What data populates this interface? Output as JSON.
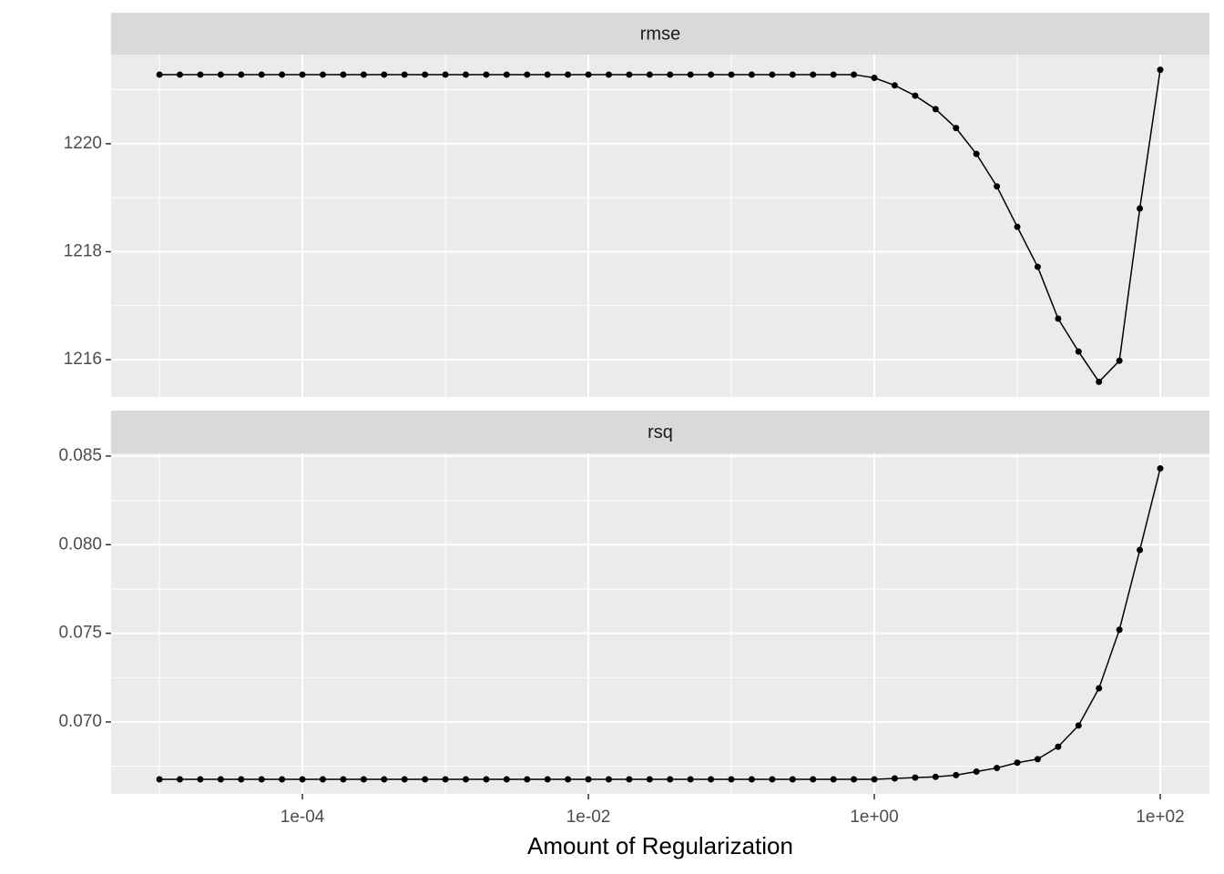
{
  "x_axis": {
    "label": "Amount of Regularization",
    "scale": "log",
    "lim": [
      4.59e-06,
      220.8
    ],
    "ticks": [
      {
        "value": 0.0001,
        "label": "1e-04"
      },
      {
        "value": 0.01,
        "label": "1e-02"
      },
      {
        "value": 1,
        "label": "1e+00"
      },
      {
        "value": 100,
        "label": "1e+02"
      }
    ],
    "minor_ticks": [
      1e-05,
      0.001,
      0.1,
      10
    ]
  },
  "chart_data": [
    {
      "type": "line",
      "title": "rmse",
      "color": "#000000",
      "grid": true,
      "x": [
        1e-05,
        1.389e-05,
        1.931e-05,
        2.683e-05,
        3.728e-05,
        5.179e-05,
        7.197e-05,
        0.0001,
        0.0001389,
        0.0001931,
        0.0002683,
        0.0003728,
        0.0005179,
        0.0007197,
        0.001,
        0.001389,
        0.001931,
        0.002683,
        0.003728,
        0.005179,
        0.007197,
        0.01,
        0.01389,
        0.01931,
        0.02683,
        0.03728,
        0.05179,
        0.07197,
        0.1,
        0.1389,
        0.1931,
        0.2683,
        0.3728,
        0.5179,
        0.7197,
        1,
        1.389,
        1.931,
        2.683,
        3.728,
        5.179,
        7.197,
        10,
        13.89,
        19.31,
        26.83,
        37.28,
        51.79,
        71.97,
        100
      ],
      "values": [
        1221.28,
        1221.28,
        1221.28,
        1221.28,
        1221.28,
        1221.28,
        1221.28,
        1221.28,
        1221.28,
        1221.28,
        1221.28,
        1221.28,
        1221.28,
        1221.28,
        1221.28,
        1221.28,
        1221.28,
        1221.28,
        1221.28,
        1221.28,
        1221.28,
        1221.28,
        1221.28,
        1221.28,
        1221.28,
        1221.28,
        1221.28,
        1221.28,
        1221.28,
        1221.28,
        1221.28,
        1221.28,
        1221.28,
        1221.28,
        1221.28,
        1221.22,
        1221.08,
        1220.89,
        1220.64,
        1220.29,
        1219.81,
        1219.21,
        1218.46,
        1217.72,
        1216.76,
        1216.15,
        1215.59,
        1215.98,
        1218.8,
        1221.37
      ],
      "ylim": [
        1215.31,
        1221.65
      ],
      "yticks": [
        1216,
        1218,
        1220
      ],
      "y_minor_ticks": [
        1217,
        1219,
        1221
      ]
    },
    {
      "type": "line",
      "title": "rsq",
      "color": "#000000",
      "grid": true,
      "x": [
        1e-05,
        1.389e-05,
        1.931e-05,
        2.683e-05,
        3.728e-05,
        5.179e-05,
        7.197e-05,
        0.0001,
        0.0001389,
        0.0001931,
        0.0002683,
        0.0003728,
        0.0005179,
        0.0007197,
        0.001,
        0.001389,
        0.001931,
        0.002683,
        0.003728,
        0.005179,
        0.007197,
        0.01,
        0.01389,
        0.01931,
        0.02683,
        0.03728,
        0.05179,
        0.07197,
        0.1,
        0.1389,
        0.1931,
        0.2683,
        0.3728,
        0.5179,
        0.7197,
        1,
        1.389,
        1.931,
        2.683,
        3.728,
        5.179,
        7.197,
        10,
        13.89,
        19.31,
        26.83,
        37.28,
        51.79,
        71.97,
        100
      ],
      "values": [
        0.06676,
        0.06676,
        0.06676,
        0.06676,
        0.06676,
        0.06676,
        0.06676,
        0.06676,
        0.06676,
        0.06676,
        0.06676,
        0.06676,
        0.06676,
        0.06676,
        0.06676,
        0.06676,
        0.06676,
        0.06676,
        0.06676,
        0.06676,
        0.06676,
        0.06676,
        0.06676,
        0.06676,
        0.06676,
        0.06676,
        0.06676,
        0.06676,
        0.06676,
        0.06676,
        0.06676,
        0.06676,
        0.06676,
        0.06676,
        0.06676,
        0.06676,
        0.06681,
        0.06686,
        0.0669,
        0.067,
        0.0672,
        0.0674,
        0.0677,
        0.0679,
        0.0686,
        0.0698,
        0.0719,
        0.0752,
        0.0797,
        0.0843
      ],
      "ylim": [
        0.06594,
        0.08515
      ],
      "yticks": [
        {
          "value": 0.07,
          "label": "0.070"
        },
        0.075,
        {
          "value": 0.08,
          "label": "0.080"
        },
        0.085
      ],
      "y_minor_ticks": [
        0.0675,
        0.0725,
        0.0775,
        0.0825
      ]
    }
  ]
}
